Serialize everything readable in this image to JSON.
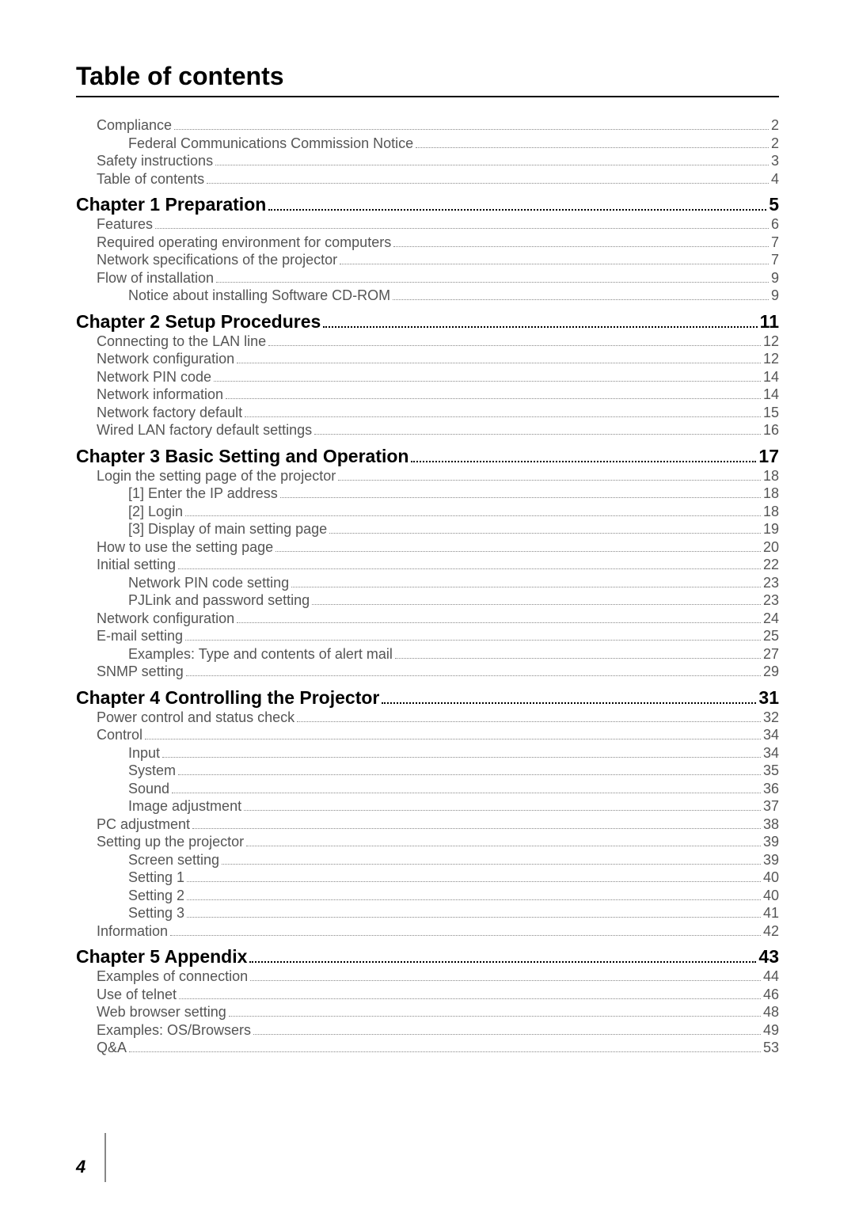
{
  "title": "Table of contents",
  "page_number": "4",
  "toc": [
    {
      "level": "lvl1",
      "label": "Compliance",
      "page": "2"
    },
    {
      "level": "lvl2",
      "label": "Federal Communications Commission Notice",
      "page": "2"
    },
    {
      "level": "lvl1",
      "label": "Safety instructions",
      "page": "3"
    },
    {
      "level": "lvl1",
      "label": "Table of contents",
      "page": "4"
    },
    {
      "level": "lvl-chapter",
      "label": "Chapter 1 Preparation",
      "page": "5"
    },
    {
      "level": "lvl1",
      "label": "Features",
      "page": "6"
    },
    {
      "level": "lvl1",
      "label": "Required operating environment for computers",
      "page": "7"
    },
    {
      "level": "lvl1",
      "label": "Network specifications of the projector",
      "page": "7"
    },
    {
      "level": "lvl1",
      "label": "Flow of installation",
      "page": "9"
    },
    {
      "level": "lvl2",
      "label": "Notice about installing Software CD-ROM",
      "page": "9"
    },
    {
      "level": "lvl-chapter",
      "label": "Chapter 2 Setup Procedures",
      "page": "11"
    },
    {
      "level": "lvl1",
      "label": "Connecting to the LAN line",
      "page": "12"
    },
    {
      "level": "lvl1",
      "label": "Network configuration",
      "page": "12"
    },
    {
      "level": "lvl1",
      "label": "Network PIN code",
      "page": "14"
    },
    {
      "level": "lvl1",
      "label": "Network information",
      "page": "14"
    },
    {
      "level": "lvl1",
      "label": "Network factory default",
      "page": "15"
    },
    {
      "level": "lvl1",
      "label": "Wired LAN factory default settings",
      "page": "16"
    },
    {
      "level": "lvl-chapter",
      "label": "Chapter 3 Basic Setting and Operation",
      "page": "17"
    },
    {
      "level": "lvl1",
      "label": "Login the setting page of the projector",
      "page": "18"
    },
    {
      "level": "lvl2",
      "label": "[1] Enter the IP address",
      "page": "18"
    },
    {
      "level": "lvl2",
      "label": "[2] Login",
      "page": "18"
    },
    {
      "level": "lvl2",
      "label": "[3] Display of main setting page",
      "page": "19"
    },
    {
      "level": "lvl1",
      "label": "How to use the setting page",
      "page": "20"
    },
    {
      "level": "lvl1",
      "label": "Initial setting",
      "page": "22"
    },
    {
      "level": "lvl2",
      "label": "Network PIN code setting",
      "page": "23"
    },
    {
      "level": "lvl2",
      "label": "PJLink and password setting",
      "page": "23"
    },
    {
      "level": "lvl1",
      "label": "Network configuration",
      "page": "24"
    },
    {
      "level": "lvl1",
      "label": "E-mail setting",
      "page": "25"
    },
    {
      "level": "lvl2",
      "label": "Examples: Type and contents of alert mail",
      "page": "27"
    },
    {
      "level": "lvl1",
      "label": "SNMP setting",
      "page": "29"
    },
    {
      "level": "lvl-chapter",
      "label": "Chapter 4 Controlling the Projector",
      "page": "31"
    },
    {
      "level": "lvl1",
      "label": "Power control and status check",
      "page": "32"
    },
    {
      "level": "lvl1",
      "label": "Control",
      "page": "34"
    },
    {
      "level": "lvl2",
      "label": "Input",
      "page": "34"
    },
    {
      "level": "lvl2",
      "label": "System",
      "page": "35"
    },
    {
      "level": "lvl2",
      "label": "Sound",
      "page": "36"
    },
    {
      "level": "lvl2",
      "label": "Image adjustment",
      "page": "37"
    },
    {
      "level": "lvl1",
      "label": "PC adjustment",
      "page": "38"
    },
    {
      "level": "lvl1",
      "label": "Setting up the projector",
      "page": "39"
    },
    {
      "level": "lvl2",
      "label": "Screen setting",
      "page": "39"
    },
    {
      "level": "lvl2",
      "label": "Setting 1",
      "page": "40"
    },
    {
      "level": "lvl2",
      "label": "Setting 2",
      "page": "40"
    },
    {
      "level": "lvl2",
      "label": "Setting 3",
      "page": "41"
    },
    {
      "level": "lvl1",
      "label": "Information",
      "page": "42"
    },
    {
      "level": "lvl-chapter",
      "label": "Chapter 5 Appendix",
      "page": "43"
    },
    {
      "level": "lvl1",
      "label": "Examples of connection",
      "page": "44"
    },
    {
      "level": "lvl1",
      "label": "Use of telnet",
      "page": "46"
    },
    {
      "level": "lvl1",
      "label": "Web browser setting",
      "page": "48"
    },
    {
      "level": "lvl1",
      "label": "Examples: OS/Browsers",
      "page": "49"
    },
    {
      "level": "lvl1",
      "label": "Q&A",
      "page": "53"
    }
  ]
}
